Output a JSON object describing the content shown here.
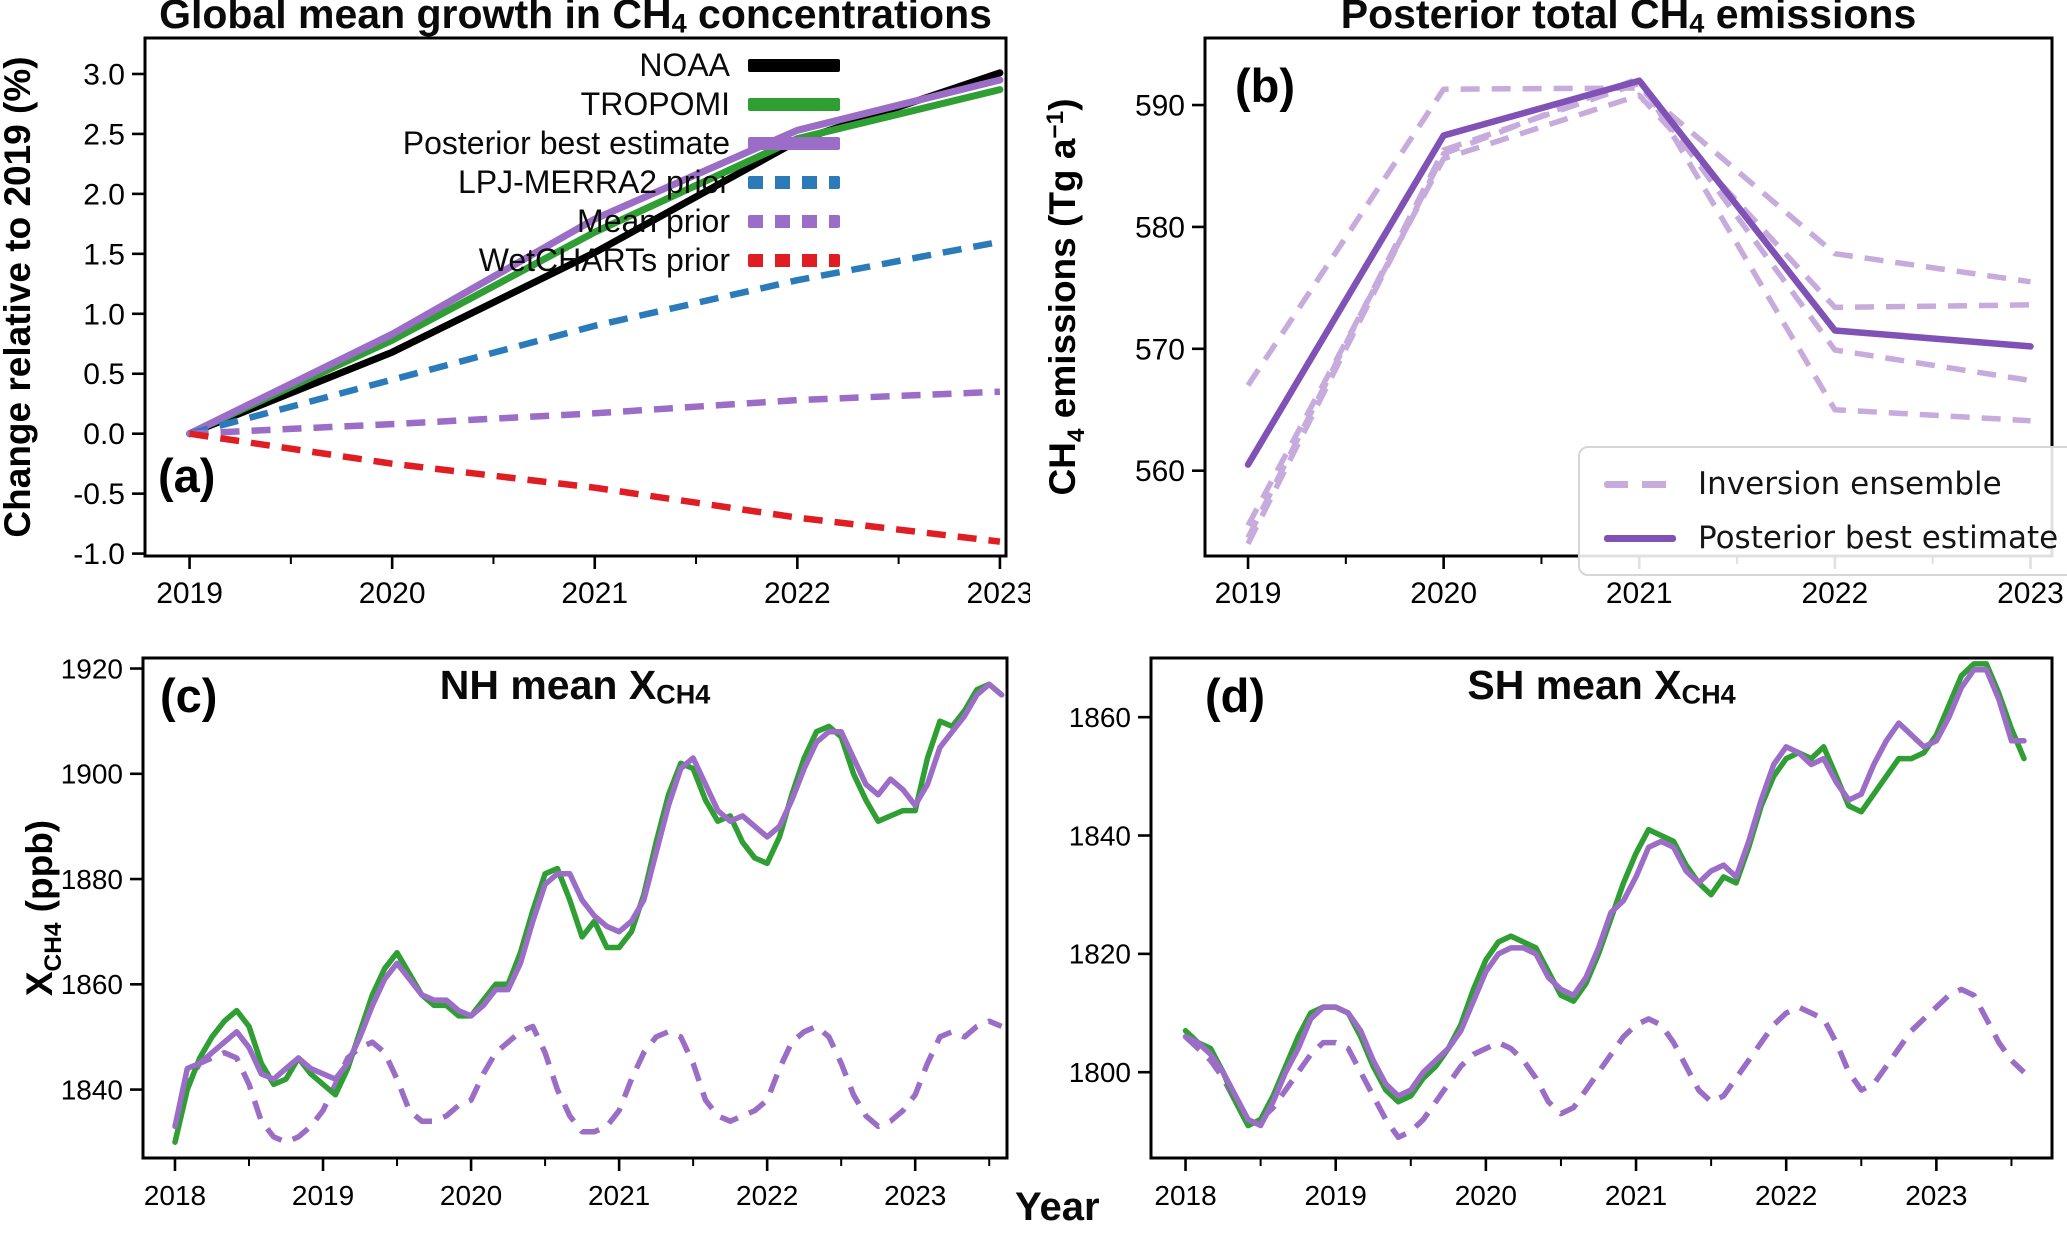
{
  "figure": {
    "xlabel": "Year"
  },
  "chart_data": [
    {
      "id": "a",
      "type": "line",
      "label": "(a)",
      "title_parts": [
        {
          "t": "Global mean growth in CH"
        },
        {
          "s": "4"
        },
        {
          "t": " concentrations"
        }
      ],
      "ylabel_parts": [
        {
          "t": "Change relative to 2019 (%)"
        }
      ],
      "x": [
        2019,
        2020,
        2021,
        2022,
        2023
      ],
      "xticks": [
        2019,
        2020,
        2021,
        2022,
        2023
      ],
      "yticks": [
        -1.0,
        -0.5,
        0.0,
        0.5,
        1.0,
        1.5,
        2.0,
        2.5,
        3.0
      ],
      "ytick_decimals": 1,
      "xlim": [
        2018.78,
        2023.03
      ],
      "ylim": [
        -1.02,
        3.3
      ],
      "grid": false,
      "legend_position": "upper-left-inside",
      "series": [
        {
          "name": "NOAA",
          "color": "#000000",
          "style": "solid",
          "width": 7,
          "values": [
            0.0,
            0.68,
            1.51,
            2.44,
            3.01
          ]
        },
        {
          "name": "TROPOMI",
          "color": "#2f9e33",
          "style": "solid",
          "width": 7,
          "values": [
            0.0,
            0.78,
            1.68,
            2.46,
            2.87
          ]
        },
        {
          "name": "Posterior best estimate",
          "color": "#9b6dc6",
          "style": "solid",
          "width": 7,
          "values": [
            0.0,
            0.83,
            1.79,
            2.53,
            2.95
          ]
        },
        {
          "name": "LPJ-MERRA2 prior",
          "color": "#2b7bba",
          "style": "dashed",
          "width": 6.5,
          "values": [
            0.0,
            0.45,
            0.9,
            1.28,
            1.6
          ]
        },
        {
          "name": "Mean prior",
          "color": "#9b6dc6",
          "style": "dashed",
          "width": 6.5,
          "values": [
            0.0,
            0.08,
            0.17,
            0.28,
            0.35
          ]
        },
        {
          "name": "WetCHARTs prior",
          "color": "#e01d23",
          "style": "dashed",
          "width": 6.5,
          "values": [
            0.0,
            -0.25,
            -0.45,
            -0.7,
            -0.9
          ]
        }
      ]
    },
    {
      "id": "b",
      "type": "line",
      "label": "(b)",
      "title_parts": [
        {
          "t": "Posterior total CH"
        },
        {
          "s": "4"
        },
        {
          "t": " emissions"
        }
      ],
      "ylabel_parts": [
        {
          "t": "CH"
        },
        {
          "s": "4"
        },
        {
          "t": " emissions (Tg a"
        },
        {
          "u": "−1"
        },
        {
          "t": ")"
        }
      ],
      "x": [
        2019,
        2020,
        2021,
        2022,
        2023
      ],
      "xticks": [
        2019,
        2020,
        2021,
        2022,
        2023
      ],
      "yticks": [
        560,
        570,
        580,
        590
      ],
      "ytick_decimals": 0,
      "xlim": [
        2018.78,
        2023.11
      ],
      "ylim": [
        553.0,
        595.5
      ],
      "grid": false,
      "legend": [
        {
          "label": "Inversion ensemble",
          "color": "#c7abdc",
          "style": "dashed"
        },
        {
          "label": "Posterior best estimate",
          "color": "#8152b5",
          "style": "solid"
        }
      ],
      "series": [
        {
          "name": "Inversion ensemble member 1",
          "color": "#c7abdc",
          "style": "dashed",
          "width": 5.5,
          "values": [
            567.0,
            591.3,
            591.4,
            577.8,
            575.5
          ]
        },
        {
          "name": "Inversion ensemble member 2",
          "color": "#c7abdc",
          "style": "dashed",
          "width": 5.5,
          "values": [
            555.5,
            585.6,
            590.8,
            573.4,
            573.6
          ]
        },
        {
          "name": "Inversion ensemble member 3",
          "color": "#c7abdc",
          "style": "dashed",
          "width": 5.5,
          "values": [
            554.5,
            586.3,
            591.8,
            569.9,
            567.4
          ]
        },
        {
          "name": "Inversion ensemble member 4",
          "color": "#c7abdc",
          "style": "dashed",
          "width": 5.5,
          "values": [
            554.0,
            586.0,
            592.2,
            565.0,
            564.1
          ]
        },
        {
          "name": "Posterior best estimate",
          "color": "#8152b5",
          "style": "solid",
          "width": 6.5,
          "values": [
            560.5,
            587.5,
            592.0,
            571.5,
            570.2
          ]
        }
      ]
    },
    {
      "id": "c",
      "type": "line",
      "label": "(c)",
      "title_parts": [
        {
          "t": "NH mean X"
        },
        {
          "s": "CH4"
        }
      ],
      "ylabel_parts": [
        {
          "t": "X"
        },
        {
          "s": "CH4"
        },
        {
          "t": " (ppb)"
        }
      ],
      "x_start": 2018.0,
      "x_step": 0.0833333,
      "xticks": [
        2018,
        2019,
        2020,
        2021,
        2022,
        2023
      ],
      "yticks": [
        1840,
        1860,
        1880,
        1900,
        1920
      ],
      "ytick_decimals": 0,
      "xlim": [
        2017.784,
        2023.62
      ],
      "ylim": [
        1827,
        1922
      ],
      "grid": false,
      "series": [
        {
          "name": "Mean prior",
          "color": "#9b6dc6",
          "style": "dashed",
          "width": 5.5,
          "values": [
            1833,
            1841,
            1845,
            1846,
            1847,
            1846,
            1841,
            1834,
            1831,
            1830,
            1831,
            1833,
            1836,
            1841,
            1846,
            1848,
            1849,
            1847,
            1842,
            1836,
            1834,
            1834,
            1835,
            1837,
            1838,
            1843,
            1847,
            1849,
            1851,
            1852,
            1847,
            1840,
            1835,
            1832,
            1832,
            1833,
            1836,
            1842,
            1847,
            1850,
            1851,
            1850,
            1845,
            1838,
            1835,
            1834,
            1835,
            1836,
            1838,
            1844,
            1849,
            1851,
            1852,
            1850,
            1845,
            1839,
            1835,
            1833,
            1834,
            1836,
            1839,
            1845,
            1850,
            1851,
            1850,
            1852,
            1853,
            1852
          ]
        },
        {
          "name": "TROPOMI",
          "color": "#2f9e33",
          "style": "solid",
          "width": 5.5,
          "values": [
            1830,
            1840,
            1846,
            1850,
            1853,
            1855,
            1852,
            1845,
            1841,
            1842,
            1846,
            1843,
            1841,
            1839,
            1844,
            1851,
            1858,
            1863,
            1866,
            1862,
            1858,
            1856,
            1856,
            1854,
            1854,
            1857,
            1860,
            1860,
            1866,
            1874,
            1881,
            1882,
            1876,
            1869,
            1872,
            1867,
            1867,
            1870,
            1877,
            1887,
            1896,
            1902,
            1901,
            1895,
            1891,
            1892,
            1887,
            1884,
            1883,
            1888,
            1896,
            1903,
            1908,
            1909,
            1907,
            1900,
            1895,
            1891,
            1892,
            1893,
            1893,
            1903,
            1910,
            1909,
            1912,
            1916,
            1917,
            1915
          ]
        },
        {
          "name": "Posterior best estimate",
          "color": "#9b6dc6",
          "style": "solid",
          "width": 5.5,
          "values": [
            1833,
            1844,
            1845,
            1847,
            1849,
            1851,
            1848,
            1843,
            1842,
            1844,
            1846,
            1844,
            1843,
            1842,
            1845,
            1850,
            1856,
            1861,
            1864,
            1861,
            1858,
            1857,
            1857,
            1855,
            1854,
            1856,
            1859,
            1859,
            1864,
            1872,
            1879,
            1881,
            1881,
            1876,
            1873,
            1871,
            1870,
            1872,
            1876,
            1885,
            1894,
            1901,
            1903,
            1898,
            1893,
            1891,
            1892,
            1890,
            1888,
            1890,
            1895,
            1901,
            1906,
            1908,
            1908,
            1903,
            1898,
            1896,
            1899,
            1897,
            1894,
            1898,
            1905,
            1908,
            1911,
            1915,
            1917,
            1915
          ]
        }
      ]
    },
    {
      "id": "d",
      "type": "line",
      "label": "(d)",
      "title_parts": [
        {
          "t": "SH mean X"
        },
        {
          "s": "CH4"
        }
      ],
      "ylabel_parts": [],
      "x_start": 2018.0,
      "x_step": 0.0833333,
      "xticks": [
        2018,
        2019,
        2020,
        2021,
        2022,
        2023
      ],
      "yticks": [
        1800,
        1820,
        1840,
        1860
      ],
      "ytick_decimals": 0,
      "xlim": [
        2017.77,
        2023.77
      ],
      "ylim": [
        1785.5,
        1870
      ],
      "grid": false,
      "series": [
        {
          "name": "Mean prior",
          "color": "#9b6dc6",
          "style": "dashed",
          "width": 5.5,
          "values": [
            1806,
            1804,
            1802,
            1799,
            1795,
            1791,
            1792,
            1794,
            1797,
            1800,
            1803,
            1805,
            1805,
            1804,
            1800,
            1796,
            1792,
            1789,
            1790,
            1792,
            1795,
            1798,
            1801,
            1803,
            1804,
            1805,
            1804,
            1802,
            1799,
            1795,
            1793,
            1794,
            1797,
            1800,
            1803,
            1806,
            1808,
            1809,
            1808,
            1805,
            1801,
            1797,
            1795,
            1796,
            1799,
            1802,
            1805,
            1808,
            1810,
            1811,
            1810,
            1809,
            1805,
            1800,
            1797,
            1798,
            1801,
            1804,
            1807,
            1809,
            1811,
            1813,
            1814,
            1813,
            1809,
            1805,
            1802,
            1800
          ]
        },
        {
          "name": "TROPOMI",
          "color": "#2f9e33",
          "style": "solid",
          "width": 5.5,
          "values": [
            1807,
            1805,
            1804,
            1800,
            1795,
            1791,
            1792,
            1796,
            1801,
            1806,
            1810,
            1811,
            1811,
            1810,
            1806,
            1801,
            1797,
            1795,
            1796,
            1799,
            1801,
            1804,
            1808,
            1814,
            1819,
            1822,
            1823,
            1822,
            1821,
            1817,
            1813,
            1812,
            1815,
            1820,
            1826,
            1832,
            1837,
            1841,
            1840,
            1839,
            1835,
            1832,
            1830,
            1833,
            1832,
            1838,
            1845,
            1850,
            1853,
            1854,
            1853,
            1855,
            1850,
            1845,
            1844,
            1847,
            1850,
            1853,
            1853,
            1854,
            1857,
            1862,
            1867,
            1869,
            1869,
            1864,
            1858,
            1853
          ]
        },
        {
          "name": "Posterior best estimate",
          "color": "#9b6dc6",
          "style": "solid",
          "width": 5.5,
          "values": [
            1806,
            1805,
            1803,
            1800,
            1796,
            1792,
            1791,
            1795,
            1800,
            1804,
            1809,
            1811,
            1811,
            1810,
            1807,
            1802,
            1798,
            1796,
            1797,
            1800,
            1802,
            1804,
            1807,
            1812,
            1817,
            1820,
            1821,
            1821,
            1820,
            1816,
            1814,
            1813,
            1816,
            1821,
            1827,
            1829,
            1833,
            1838,
            1839,
            1838,
            1834,
            1832,
            1834,
            1835,
            1833,
            1839,
            1846,
            1852,
            1855,
            1854,
            1852,
            1853,
            1849,
            1846,
            1847,
            1852,
            1856,
            1859,
            1857,
            1855,
            1856,
            1860,
            1865,
            1868,
            1868,
            1863,
            1856,
            1856
          ]
        }
      ]
    }
  ]
}
